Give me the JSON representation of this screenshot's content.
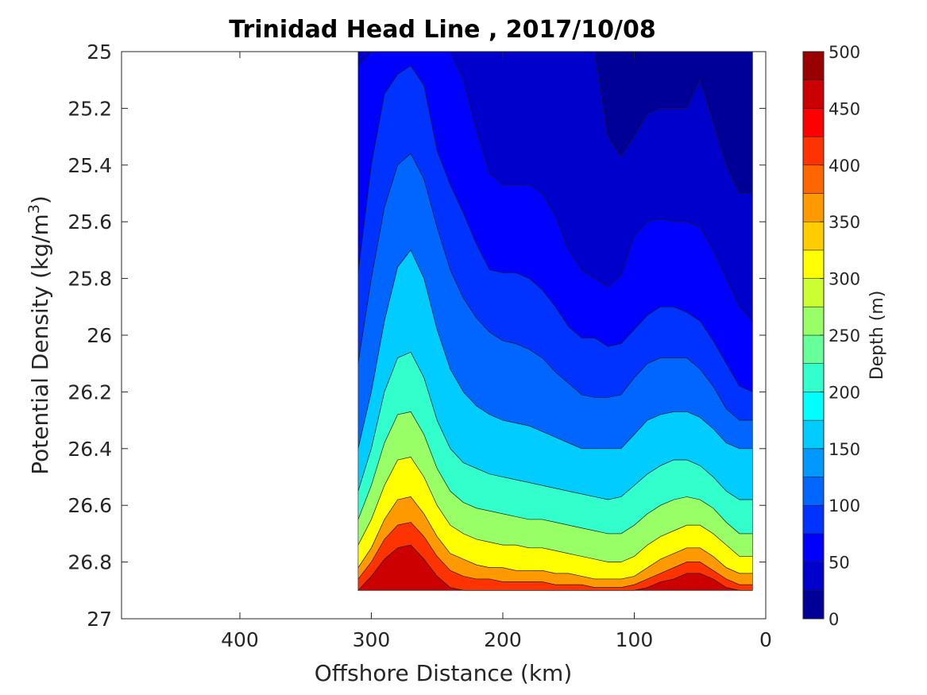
{
  "chart_data": {
    "type": "contour",
    "title": "Trinidad Head Line , 2017/10/08",
    "xlabel": "Offshore Distance (km)",
    "ylabel": "Potential Density (kg/m",
    "ylabel_sup": "3",
    "ylabel_close": ")",
    "xlim": [
      490,
      0
    ],
    "ylim": [
      25,
      27
    ],
    "x_ticks": [
      "400",
      "300",
      "200",
      "100",
      "0"
    ],
    "y_ticks": [
      "25",
      "25.2",
      "25.4",
      "25.6",
      "25.8",
      "26",
      "26.2",
      "26.4",
      "26.6",
      "26.8",
      "27"
    ],
    "colorbar": {
      "label": "Depth (m)",
      "range": [
        0,
        500
      ],
      "ticks": [
        "0",
        "50",
        "100",
        "150",
        "200",
        "250",
        "300",
        "350",
        "400",
        "450",
        "500"
      ],
      "levels": 20,
      "colormap": "jet"
    },
    "x": [
      310,
      300,
      290,
      280,
      270,
      260,
      250,
      240,
      230,
      220,
      210,
      200,
      190,
      180,
      170,
      160,
      150,
      140,
      130,
      120,
      110,
      100,
      90,
      80,
      70,
      60,
      50,
      40,
      30,
      20,
      10
    ],
    "depth_isopleths": [
      {
        "depth": 25,
        "density": [
          25.0,
          25.0,
          25.0,
          25.0,
          25.0,
          25.0,
          25.0,
          25.0,
          25.0,
          25.0,
          25.0,
          25.0,
          25.0,
          25.0,
          25.0,
          25.0,
          25.0,
          25.0,
          25.0,
          25.3,
          25.37,
          25.3,
          25.22,
          25.2,
          25.2,
          25.2,
          25.1,
          25.25,
          25.4,
          25.5,
          25.5
        ]
      },
      {
        "depth": 50,
        "density": [
          25.05,
          25.0,
          25.0,
          25.0,
          25.0,
          25.0,
          25.0,
          25.0,
          25.1,
          25.28,
          25.43,
          25.47,
          25.47,
          25.47,
          25.5,
          25.58,
          25.7,
          25.77,
          25.8,
          25.83,
          25.79,
          25.65,
          25.6,
          25.59,
          25.6,
          25.6,
          25.62,
          25.7,
          25.8,
          25.9,
          25.95
        ]
      },
      {
        "depth": 75,
        "density": [
          25.78,
          25.4,
          25.15,
          25.08,
          25.05,
          25.12,
          25.35,
          25.47,
          25.57,
          25.68,
          25.77,
          25.78,
          25.78,
          25.8,
          25.84,
          25.9,
          25.97,
          26.01,
          26.01,
          26.04,
          26.03,
          25.98,
          25.93,
          25.9,
          25.9,
          25.92,
          25.95,
          26.02,
          26.1,
          26.18,
          26.2
        ]
      },
      {
        "depth": 100,
        "density": [
          26.1,
          25.8,
          25.55,
          25.4,
          25.36,
          25.45,
          25.62,
          25.77,
          25.87,
          25.94,
          25.99,
          26.02,
          26.03,
          26.05,
          26.08,
          26.13,
          26.17,
          26.21,
          26.22,
          26.22,
          26.21,
          26.15,
          26.1,
          26.08,
          26.08,
          26.08,
          26.12,
          26.18,
          26.26,
          26.3,
          26.3
        ]
      },
      {
        "depth": 150,
        "density": [
          26.4,
          26.2,
          25.95,
          25.76,
          25.7,
          25.8,
          25.98,
          26.12,
          26.2,
          26.25,
          26.28,
          26.3,
          26.31,
          26.32,
          26.34,
          26.36,
          26.38,
          26.4,
          26.4,
          26.4,
          26.4,
          26.35,
          26.3,
          26.28,
          26.27,
          26.27,
          26.29,
          26.33,
          26.38,
          26.4,
          26.4
        ]
      },
      {
        "depth": 200,
        "density": [
          26.55,
          26.4,
          26.2,
          26.08,
          26.06,
          26.15,
          26.3,
          26.4,
          26.45,
          26.47,
          26.49,
          26.5,
          26.51,
          26.52,
          26.53,
          26.54,
          26.55,
          26.56,
          26.57,
          26.58,
          26.57,
          26.53,
          26.49,
          26.46,
          26.44,
          26.44,
          26.46,
          26.5,
          26.55,
          26.58,
          26.58
        ]
      },
      {
        "depth": 250,
        "density": [
          26.65,
          26.53,
          26.38,
          26.28,
          26.27,
          26.35,
          26.47,
          26.55,
          26.59,
          26.61,
          26.62,
          26.63,
          26.64,
          26.65,
          26.65,
          26.66,
          26.67,
          26.68,
          26.69,
          26.7,
          26.7,
          26.67,
          26.63,
          26.6,
          26.58,
          26.57,
          26.58,
          26.61,
          26.66,
          26.7,
          26.7
        ]
      },
      {
        "depth": 300,
        "density": [
          26.74,
          26.65,
          26.53,
          26.44,
          26.43,
          26.5,
          26.6,
          26.67,
          26.7,
          26.72,
          26.73,
          26.74,
          26.74,
          26.75,
          26.75,
          26.76,
          26.77,
          26.78,
          26.79,
          26.8,
          26.8,
          26.78,
          26.74,
          26.71,
          26.69,
          26.67,
          26.67,
          26.7,
          26.74,
          26.78,
          26.78
        ]
      },
      {
        "depth": 350,
        "density": [
          26.82,
          26.75,
          26.65,
          26.58,
          26.57,
          26.63,
          26.71,
          26.77,
          26.79,
          26.81,
          26.82,
          26.82,
          26.83,
          26.83,
          26.83,
          26.84,
          26.84,
          26.85,
          26.86,
          26.86,
          26.86,
          26.85,
          26.82,
          26.79,
          26.77,
          26.75,
          26.75,
          26.78,
          26.82,
          26.84,
          26.84
        ]
      },
      {
        "depth": 400,
        "density": [
          26.86,
          26.8,
          26.72,
          26.67,
          26.66,
          26.71,
          26.78,
          26.83,
          26.85,
          26.86,
          26.86,
          26.87,
          26.87,
          26.87,
          26.87,
          26.88,
          26.88,
          26.88,
          26.89,
          26.89,
          26.89,
          26.88,
          26.86,
          26.84,
          26.82,
          26.8,
          26.8,
          26.83,
          26.86,
          26.88,
          26.88
        ]
      },
      {
        "depth": 450,
        "density": [
          26.9,
          26.85,
          26.79,
          26.75,
          26.74,
          26.79,
          26.85,
          26.89,
          26.9,
          26.9,
          26.9,
          26.9,
          26.9,
          26.9,
          26.9,
          26.9,
          26.9,
          26.9,
          26.9,
          26.9,
          26.9,
          26.9,
          26.89,
          26.87,
          26.86,
          26.84,
          26.84,
          26.86,
          26.89,
          26.9,
          26.9
        ]
      }
    ]
  }
}
